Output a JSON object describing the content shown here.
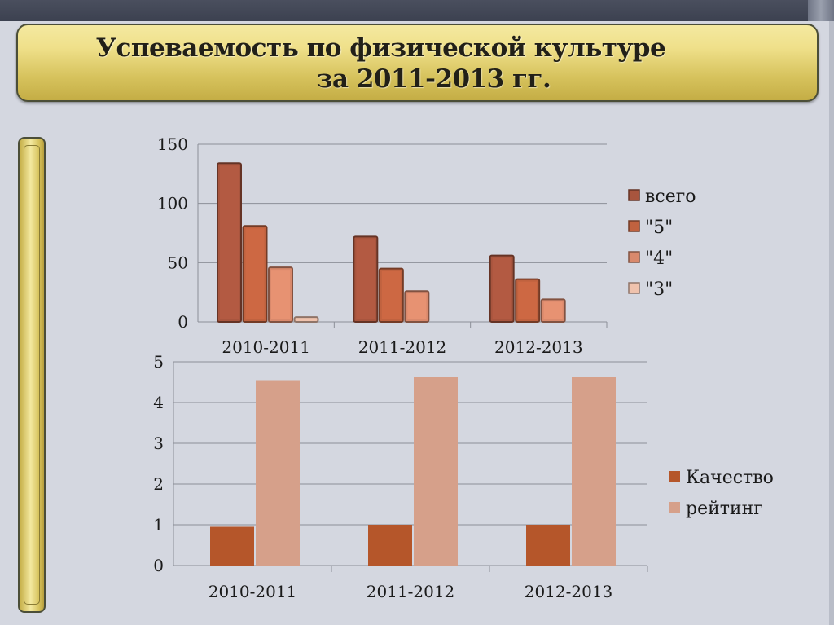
{
  "title": {
    "line1": "Успеваемость по физической культуре",
    "line2": "за 2011-2013 гг."
  },
  "chart_data": [
    {
      "type": "bar",
      "categories": [
        "2010-2011",
        "2011-2012",
        "2012-2013"
      ],
      "series": [
        {
          "name": "всего",
          "values": [
            134,
            72,
            56
          ],
          "color": "#a8553e"
        },
        {
          "name": "\"5\"",
          "values": [
            81,
            45,
            36
          ],
          "color": "#c0623f"
        },
        {
          "name": "\"4\"",
          "values": [
            46,
            26,
            19
          ],
          "color": "#d9896c"
        },
        {
          "name": "\"3\"",
          "values": [
            4,
            0,
            0
          ],
          "color": "#efc2ad"
        }
      ],
      "ylim": [
        0,
        150
      ],
      "yticks": [
        "0",
        "50",
        "100",
        "150"
      ],
      "grid": true,
      "legend": "right"
    },
    {
      "type": "bar",
      "categories": [
        "2010-2011",
        "2011-2012",
        "2012-2013"
      ],
      "series": [
        {
          "name": "Качество",
          "values": [
            0.95,
            1.0,
            1.0
          ],
          "color": "#b5562a"
        },
        {
          "name": "рейтинг",
          "values": [
            4.55,
            4.62,
            4.62
          ],
          "color": "#d6a08a"
        }
      ],
      "ylim": [
        0,
        5
      ],
      "yticks": [
        "0",
        "1",
        "2",
        "3",
        "4",
        "5"
      ],
      "grid": true,
      "legend": "right"
    }
  ]
}
